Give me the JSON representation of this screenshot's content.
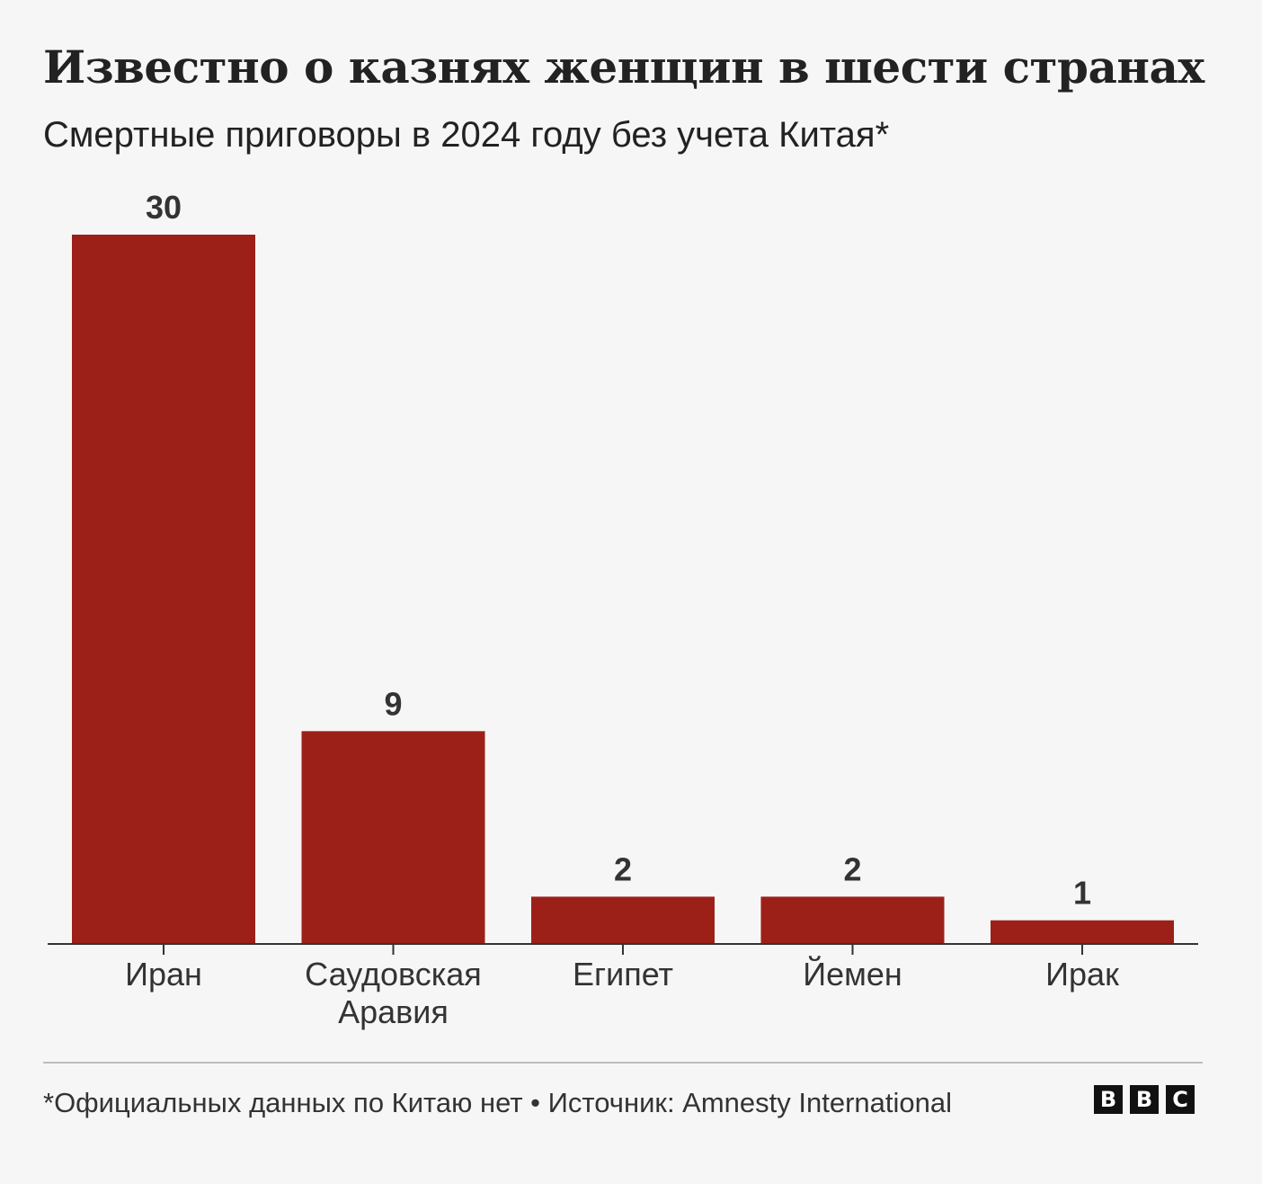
{
  "title": "Известно о казнях женщин в шести странах",
  "subtitle": "Смертные приговоры в 2024 году без учета Китая*",
  "chart_data": {
    "type": "bar",
    "categories": [
      [
        "Иран"
      ],
      [
        "Саудовская",
        "Аравия"
      ],
      [
        "Египет"
      ],
      [
        "Йемен"
      ],
      [
        "Ирак"
      ]
    ],
    "values": [
      30,
      9,
      2,
      2,
      1
    ],
    "ylim": [
      0,
      30
    ],
    "grid": false,
    "bar_color": "#9c2018",
    "axis_color": "#333333"
  },
  "footer": {
    "note": "*Официальных данных по Китаю нет • Источник: Amnesty International",
    "logo": [
      "B",
      "B",
      "C"
    ]
  }
}
